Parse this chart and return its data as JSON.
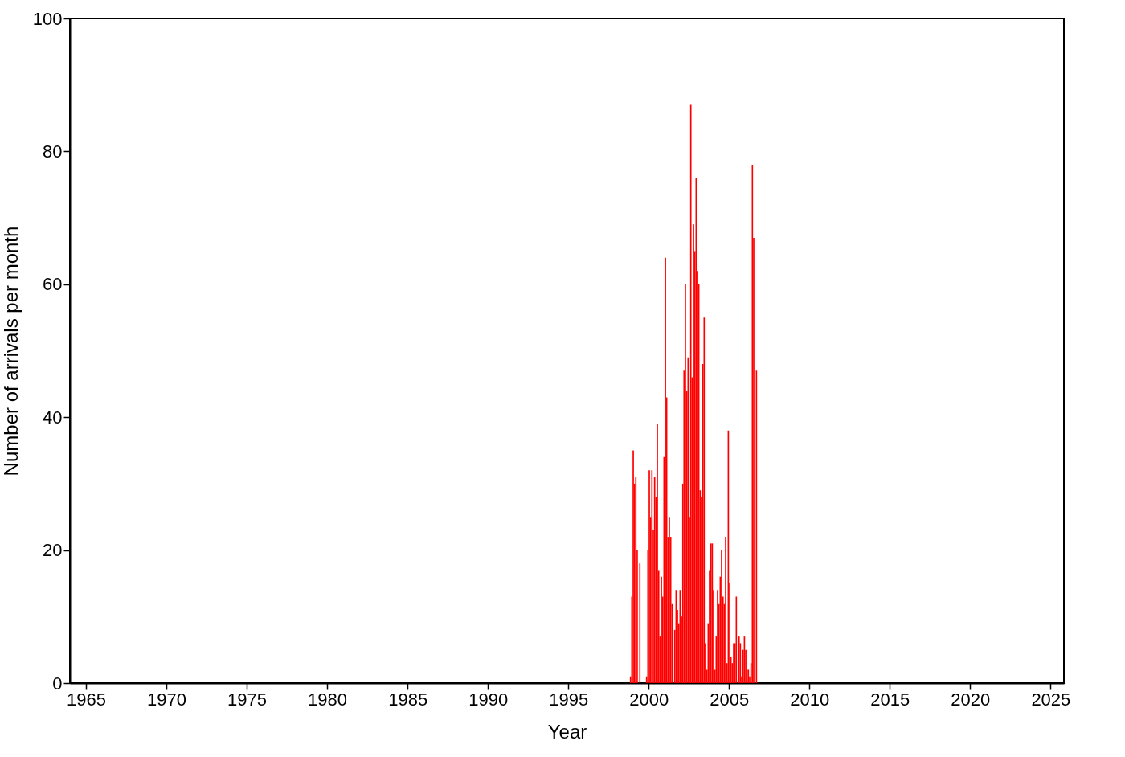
{
  "chart_data": {
    "type": "bar",
    "xlabel": "Year",
    "ylabel": "Number of arrivals per month",
    "x": [
      "1998-11",
      "1998-12",
      "1999-01",
      "1999-02",
      "1999-03",
      "1999-04",
      "1999-05",
      "1999-06",
      "1999-07",
      "1999-08",
      "1999-09",
      "1999-10",
      "1999-11",
      "1999-12",
      "2000-01",
      "2000-02",
      "2000-03",
      "2000-04",
      "2000-05",
      "2000-06",
      "2000-07",
      "2000-08",
      "2000-09",
      "2000-10",
      "2000-11",
      "2000-12",
      "2001-01",
      "2001-02",
      "2001-03",
      "2001-04",
      "2001-05",
      "2001-06",
      "2001-07",
      "2001-08",
      "2001-09",
      "2001-10",
      "2001-11",
      "2001-12",
      "2002-01",
      "2002-02",
      "2002-03",
      "2002-04",
      "2002-05",
      "2002-06",
      "2002-07",
      "2002-08",
      "2002-09",
      "2002-10",
      "2002-11",
      "2002-12",
      "2003-01",
      "2003-02",
      "2003-03",
      "2003-04",
      "2003-05",
      "2003-06",
      "2003-07",
      "2003-08",
      "2003-09",
      "2003-10",
      "2003-11",
      "2003-12",
      "2004-01",
      "2004-02",
      "2004-03",
      "2004-04",
      "2004-05",
      "2004-06",
      "2004-07",
      "2004-08",
      "2004-09",
      "2004-10",
      "2004-11",
      "2004-12",
      "2005-01",
      "2005-02",
      "2005-03",
      "2005-04",
      "2005-05",
      "2005-06",
      "2005-07",
      "2005-08",
      "2005-09",
      "2005-10",
      "2005-11",
      "2005-12",
      "2006-01",
      "2006-02",
      "2006-03",
      "2006-04",
      "2006-05",
      "2006-06",
      "2006-07",
      "2006-08",
      "2006-09"
    ],
    "values": [
      1,
      13,
      35,
      30,
      31,
      20,
      0,
      18,
      0,
      0,
      0,
      0,
      1,
      20,
      32,
      25,
      32,
      23,
      31,
      28,
      39,
      17,
      7,
      16,
      13,
      34,
      64,
      43,
      22,
      25,
      22,
      12,
      0,
      8,
      14,
      11,
      9,
      14,
      10,
      30,
      47,
      60,
      44,
      49,
      25,
      87,
      46,
      69,
      65,
      76,
      62,
      60,
      29,
      28,
      48,
      55,
      6,
      2,
      9,
      17,
      21,
      21,
      14,
      2,
      7,
      14,
      12,
      16,
      20,
      13,
      12,
      22,
      3,
      38,
      15,
      4,
      3,
      6,
      6,
      13,
      0,
      7,
      6,
      1,
      5,
      7,
      5,
      2,
      2,
      1,
      3,
      78,
      67,
      0,
      47
    ],
    "color": "#ff0000",
    "xlim": [
      "1964-01",
      "2025-11"
    ],
    "xticks": [
      {
        "value": "1965",
        "label": "1965"
      },
      {
        "value": "1970",
        "label": "1970"
      },
      {
        "value": "1975",
        "label": "1975"
      },
      {
        "value": "1980",
        "label": "1980"
      },
      {
        "value": "1985",
        "label": "1985"
      },
      {
        "value": "1990",
        "label": "1990"
      },
      {
        "value": "1995",
        "label": "1995"
      },
      {
        "value": "2000",
        "label": "2000"
      },
      {
        "value": "2005",
        "label": "2005"
      },
      {
        "value": "2010",
        "label": "2010"
      },
      {
        "value": "2015",
        "label": "2015"
      },
      {
        "value": "2020",
        "label": "2020"
      },
      {
        "value": "2025",
        "label": "2025"
      }
    ],
    "ylim": [
      0,
      100
    ],
    "yticks": [
      0,
      20,
      40,
      60,
      80,
      100
    ],
    "grid": false
  }
}
